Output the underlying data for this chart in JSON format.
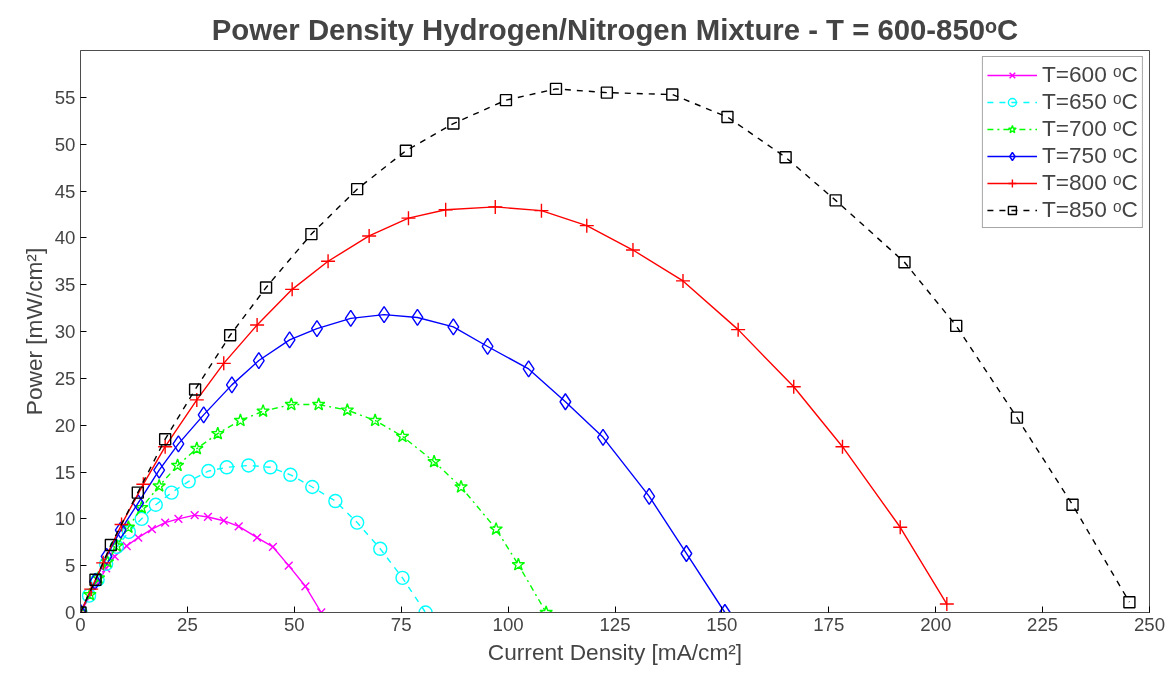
{
  "chart_data": {
    "type": "line",
    "title": "Power Density Hydrogen/Nitrogen Mixture - T = 600-850ᵒC",
    "xlabel": "Current Density [mA/cm²]",
    "ylabel": "Power [mW/cm²]",
    "xlim": [
      0,
      250
    ],
    "ylim": [
      0,
      60
    ],
    "xticks": [
      0,
      25,
      50,
      75,
      100,
      125,
      150,
      175,
      200,
      225,
      250
    ],
    "yticks": [
      0,
      5,
      10,
      15,
      20,
      25,
      30,
      35,
      40,
      45,
      50,
      55
    ],
    "grid": false,
    "legend": "top right",
    "series": [
      {
        "name": "T=600 ᵒC",
        "color": "#ff00ff",
        "marker": "x",
        "line_style": "solid",
        "x": [
          0,
          6,
          8.0,
          10.8,
          13.5,
          16.7,
          19.8,
          22.9,
          26.7,
          29.8,
          33.5,
          37.0,
          41.3,
          45.0,
          48.7,
          52.6,
          56.3
        ],
        "values": [
          0,
          4.7,
          6.0,
          7.1,
          8.0,
          8.9,
          9.6,
          10.0,
          10.4,
          10.2,
          9.8,
          9.2,
          8.0,
          7.0,
          5.0,
          2.8,
          0
        ]
      },
      {
        "name": "T=650 ᵒC",
        "color": "#00ffff",
        "marker": "circle",
        "line_style": "dashed",
        "x": [
          0,
          2,
          4,
          6,
          8.5,
          11.3,
          14.3,
          17.6,
          21.3,
          25.3,
          29.9,
          34.2,
          39.3,
          44.4,
          49.1,
          54.2,
          59.6,
          64.7,
          70.1,
          75.3,
          80.7
        ],
        "values": [
          0,
          1.8,
          3.5,
          5.2,
          7.0,
          8.6,
          10.0,
          11.5,
          12.8,
          14.0,
          15.1,
          15.5,
          15.7,
          15.5,
          14.7,
          13.4,
          11.9,
          9.6,
          6.8,
          3.7,
          0
        ]
      },
      {
        "name": "T=700 ᵒC",
        "color": "#00ff00",
        "marker": "star",
        "line_style": "dashdot",
        "x": [
          0,
          2.2,
          4.2,
          6.3,
          8.5,
          11.2,
          14.3,
          18.4,
          22.7,
          27.2,
          32.1,
          37.4,
          42.7,
          49.3,
          55.7,
          62.4,
          68.9,
          75.3,
          82.7,
          89.0,
          97.2,
          102.4,
          108.9
        ],
        "values": [
          0,
          1.9,
          3.7,
          5.4,
          7.1,
          9.1,
          11.2,
          13.5,
          15.7,
          17.5,
          19.1,
          20.5,
          21.5,
          22.2,
          22.2,
          21.6,
          20.5,
          18.8,
          16.1,
          13.4,
          8.9,
          5.1,
          0
        ]
      },
      {
        "name": "T=750 ᵒC",
        "color": "#0000ff",
        "marker": "diamond",
        "line_style": "solid",
        "x": [
          0,
          3.4,
          6.1,
          9.4,
          13.5,
          18.4,
          22.9,
          28.8,
          35.4,
          41.7,
          48.9,
          55.3,
          63.2,
          71.0,
          78.8,
          87.2,
          95.2,
          104.8,
          113.4,
          122.2,
          133.0,
          141.7,
          150.7
        ],
        "values": [
          0,
          3.3,
          6.0,
          8.8,
          11.7,
          15.2,
          18.0,
          21.1,
          24.3,
          26.9,
          29.1,
          30.3,
          31.4,
          31.8,
          31.5,
          30.5,
          28.4,
          26.0,
          22.5,
          18.7,
          12.4,
          6.3,
          0
        ]
      },
      {
        "name": "T=800 ᵒC",
        "color": "#ff0000",
        "marker": "cross",
        "line_style": "solid",
        "x": [
          0,
          2.5,
          5.3,
          9.6,
          14.7,
          19.8,
          27.2,
          33.5,
          41.3,
          49.5,
          57.9,
          67.5,
          76.7,
          85.4,
          97.0,
          107.8,
          118.4,
          129.2,
          140.9,
          153.8,
          166.8,
          178.2,
          191.7,
          202.6
        ],
        "values": [
          0,
          2.5,
          5.3,
          9.4,
          13.7,
          17.7,
          22.7,
          26.6,
          30.7,
          34.5,
          37.5,
          40.2,
          42.1,
          43.0,
          43.3,
          42.9,
          41.3,
          38.7,
          35.4,
          30.2,
          24.1,
          17.7,
          9.1,
          0.9
        ]
      },
      {
        "name": "T=850 ᵒC",
        "color": "#000000",
        "marker": "square",
        "line_style": "dashed",
        "x": [
          0,
          3.5,
          7.1,
          13.4,
          19.8,
          26.8,
          35.0,
          43.4,
          54.0,
          64.7,
          76.1,
          87.2,
          99.5,
          111.2,
          123.1,
          138.4,
          151.3,
          164.9,
          176.6,
          192.7,
          204.8,
          219.0,
          232.0,
          245.3
        ],
        "values": [
          0,
          3.5,
          7.2,
          12.8,
          18.5,
          23.8,
          29.6,
          34.7,
          40.4,
          45.2,
          49.3,
          52.2,
          54.7,
          55.9,
          55.5,
          55.3,
          52.9,
          48.6,
          44.0,
          37.4,
          30.6,
          20.8,
          11.5,
          1.1
        ]
      }
    ]
  }
}
